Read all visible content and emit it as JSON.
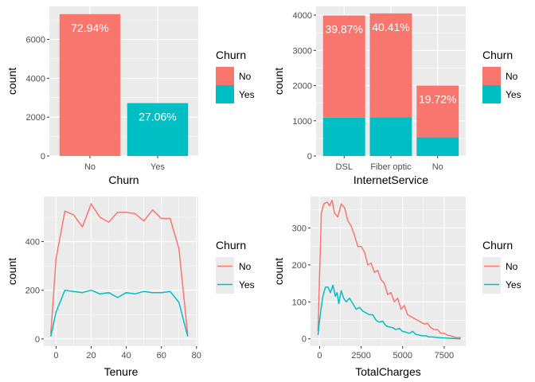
{
  "colors": {
    "no": "#F8766D",
    "yes": "#00BFC4",
    "panel": "#EBEBEB",
    "grid": "#FFFFFF"
  },
  "chart_data": [
    {
      "type": "bar",
      "xlabel": "Churn",
      "ylabel": "count",
      "categories": [
        "No",
        "Yes"
      ],
      "series": [
        {
          "name": "No",
          "values": [
            7300,
            0
          ]
        },
        {
          "name": "Yes",
          "values": [
            0,
            2720
          ]
        }
      ],
      "data_labels": [
        "72.94%",
        "27.06%"
      ],
      "yticks": [
        0,
        2000,
        4000,
        6000
      ],
      "ylim": [
        0,
        7700
      ],
      "legend": {
        "title": "Churn",
        "entries": [
          "No",
          "Yes"
        ],
        "position": "right"
      },
      "grid": true
    },
    {
      "type": "bar",
      "stacked": true,
      "xlabel": "InternetService",
      "ylabel": "count",
      "categories": [
        "DSL",
        "Fiber optic",
        "No"
      ],
      "series": [
        {
          "name": "No",
          "values": [
            2900,
            2950,
            1470
          ]
        },
        {
          "name": "Yes",
          "values": [
            1090,
            1100,
            530
          ]
        }
      ],
      "data_labels": [
        "39.87%",
        "40.41%",
        "19.72%"
      ],
      "yticks": [
        0,
        1000,
        2000,
        3000,
        4000
      ],
      "ylim": [
        0,
        4250
      ],
      "legend": {
        "title": "Churn",
        "entries": [
          "No",
          "Yes"
        ],
        "position": "right"
      },
      "grid": true
    },
    {
      "type": "line",
      "xlabel": "Tenure",
      "ylabel": "count",
      "series": [
        {
          "name": "No",
          "points": [
            [
              -3,
              20
            ],
            [
              0,
              330
            ],
            [
              5,
              525
            ],
            [
              10,
              510
            ],
            [
              15,
              460
            ],
            [
              20,
              555
            ],
            [
              25,
              500
            ],
            [
              30,
              480
            ],
            [
              35,
              520
            ],
            [
              40,
              520
            ],
            [
              45,
              515
            ],
            [
              50,
              485
            ],
            [
              55,
              530
            ],
            [
              60,
              495
            ],
            [
              65,
              495
            ],
            [
              70,
              370
            ],
            [
              75,
              15
            ]
          ]
        },
        {
          "name": "Yes",
          "points": [
            [
              -3,
              10
            ],
            [
              0,
              110
            ],
            [
              5,
              200
            ],
            [
              10,
              195
            ],
            [
              15,
              190
            ],
            [
              20,
              200
            ],
            [
              25,
              185
            ],
            [
              30,
              190
            ],
            [
              35,
              170
            ],
            [
              40,
              190
            ],
            [
              45,
              185
            ],
            [
              50,
              195
            ],
            [
              55,
              190
            ],
            [
              60,
              190
            ],
            [
              65,
              195
            ],
            [
              70,
              150
            ],
            [
              75,
              10
            ]
          ]
        }
      ],
      "xticks": [
        0,
        20,
        40,
        60,
        80
      ],
      "yticks": [
        0,
        200,
        400
      ],
      "xlim": [
        -7,
        81
      ],
      "ylim": [
        -30,
        585
      ],
      "legend": {
        "title": "Churn",
        "entries": [
          "No",
          "Yes"
        ],
        "position": "right"
      },
      "grid": true
    },
    {
      "type": "line",
      "xlabel": "TotalCharges",
      "ylabel": "count",
      "series": [
        {
          "name": "No",
          "points": [
            [
              -100,
              20
            ],
            [
              100,
              340
            ],
            [
              250,
              365
            ],
            [
              450,
              370
            ],
            [
              600,
              360
            ],
            [
              750,
              375
            ],
            [
              900,
              340
            ],
            [
              1100,
              330
            ],
            [
              1300,
              365
            ],
            [
              1500,
              355
            ],
            [
              1700,
              320
            ],
            [
              1900,
              305
            ],
            [
              2100,
              280
            ],
            [
              2300,
              250
            ],
            [
              2500,
              250
            ],
            [
              2700,
              235
            ],
            [
              2900,
              200
            ],
            [
              3100,
              205
            ],
            [
              3300,
              180
            ],
            [
              3500,
              185
            ],
            [
              3700,
              160
            ],
            [
              3900,
              150
            ],
            [
              4100,
              120
            ],
            [
              4300,
              125
            ],
            [
              4500,
              100
            ],
            [
              4700,
              110
            ],
            [
              4900,
              80
            ],
            [
              5100,
              90
            ],
            [
              5300,
              65
            ],
            [
              5500,
              60
            ],
            [
              5700,
              55
            ],
            [
              5900,
              50
            ],
            [
              6100,
              45
            ],
            [
              6300,
              40
            ],
            [
              6500,
              42
            ],
            [
              6700,
              30
            ],
            [
              6900,
              25
            ],
            [
              7100,
              25
            ],
            [
              7300,
              15
            ],
            [
              7500,
              15
            ],
            [
              7700,
              10
            ],
            [
              7900,
              8
            ],
            [
              8100,
              5
            ],
            [
              8300,
              3
            ],
            [
              8500,
              3
            ]
          ]
        },
        {
          "name": "Yes",
          "points": [
            [
              -100,
              10
            ],
            [
              50,
              70
            ],
            [
              200,
              115
            ],
            [
              350,
              140
            ],
            [
              500,
              140
            ],
            [
              650,
              125
            ],
            [
              800,
              145
            ],
            [
              950,
              115
            ],
            [
              1050,
              125
            ],
            [
              1150,
              95
            ],
            [
              1300,
              130
            ],
            [
              1450,
              110
            ],
            [
              1600,
              100
            ],
            [
              1800,
              110
            ],
            [
              2000,
              95
            ],
            [
              2200,
              80
            ],
            [
              2400,
              85
            ],
            [
              2600,
              75
            ],
            [
              2800,
              70
            ],
            [
              3000,
              65
            ],
            [
              3200,
              65
            ],
            [
              3400,
              50
            ],
            [
              3600,
              45
            ],
            [
              3800,
              48
            ],
            [
              4000,
              35
            ],
            [
              4200,
              32
            ],
            [
              4400,
              30
            ],
            [
              4600,
              25
            ],
            [
              4800,
              28
            ],
            [
              5000,
              20
            ],
            [
              5200,
              18
            ],
            [
              5400,
              15
            ],
            [
              5600,
              20
            ],
            [
              5800,
              12
            ],
            [
              6000,
              10
            ],
            [
              6200,
              8
            ],
            [
              6400,
              8
            ],
            [
              6600,
              5
            ],
            [
              6800,
              5
            ],
            [
              7200,
              3
            ],
            [
              7600,
              2
            ],
            [
              8000,
              1
            ],
            [
              8500,
              0
            ]
          ]
        }
      ],
      "xticks": [
        0,
        2500,
        5000,
        7500
      ],
      "yticks": [
        0,
        100,
        200,
        300
      ],
      "xlim": [
        -550,
        8800
      ],
      "ylim": [
        -20,
        385
      ],
      "legend": {
        "title": "Churn",
        "entries": [
          "No",
          "Yes"
        ],
        "position": "right"
      },
      "grid": true
    }
  ]
}
